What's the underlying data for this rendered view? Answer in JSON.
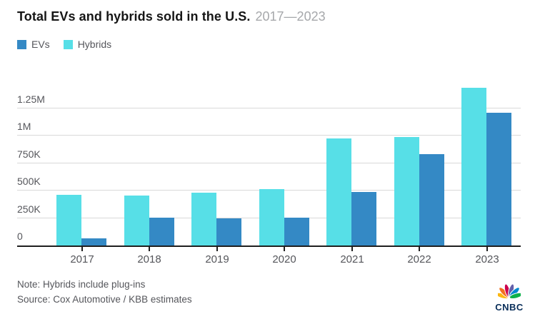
{
  "header": {
    "title": "Total EVs and hybrids sold in the U.S.",
    "subtitle": "2017—2023"
  },
  "legend": {
    "items": [
      {
        "label": "EVs",
        "color": "#3489C5"
      },
      {
        "label": "Hybrids",
        "color": "#57DFE7"
      }
    ]
  },
  "chart_data": {
    "type": "bar",
    "title": "Total EVs and hybrids sold in the U.S.",
    "subtitle": "2017—2023",
    "categories": [
      "2017",
      "2018",
      "2019",
      "2020",
      "2021",
      "2022",
      "2023"
    ],
    "series": [
      {
        "name": "Hybrids",
        "color": "#57DFE7",
        "values": [
          455000,
          445000,
          473000,
          505000,
          970000,
          980000,
          1430000
        ]
      },
      {
        "name": "EVs",
        "color": "#3489C5",
        "values": [
          58000,
          245000,
          238000,
          250000,
          480000,
          825000,
          1200000
        ]
      }
    ],
    "xlabel": "",
    "ylabel": "",
    "ylim": [
      0,
      1460000
    ],
    "ytick_values": [
      0,
      250000,
      500000,
      750000,
      1000000,
      1250000
    ],
    "ytick_labels": [
      "0",
      "250K",
      "500K",
      "750K",
      "1M",
      "1.25M"
    ],
    "grid": "horizontal",
    "legend_position": "top-left",
    "bar_layout": "Hybrids bar drawn left of EVs bar in each category pair"
  },
  "footer": {
    "note": "Note: Hybrids include plug-ins",
    "source": "Source: Cox Automotive / KBB estimates",
    "brand": "CNBC"
  },
  "colors": {
    "ev_blue": "#3489C5",
    "hybrid_cyan": "#57DFE7",
    "gridline": "#D9D9D9",
    "axis": "#1F1F1F",
    "title_text": "#161616",
    "subtitle_text": "#A6A8AB",
    "label_text": "#55565B",
    "peacock": [
      "#FCB711",
      "#F37021",
      "#CC004C",
      "#6460AA",
      "#0089D0",
      "#0DB14B"
    ],
    "cnbc_wordmark": "#0A2F5A"
  }
}
